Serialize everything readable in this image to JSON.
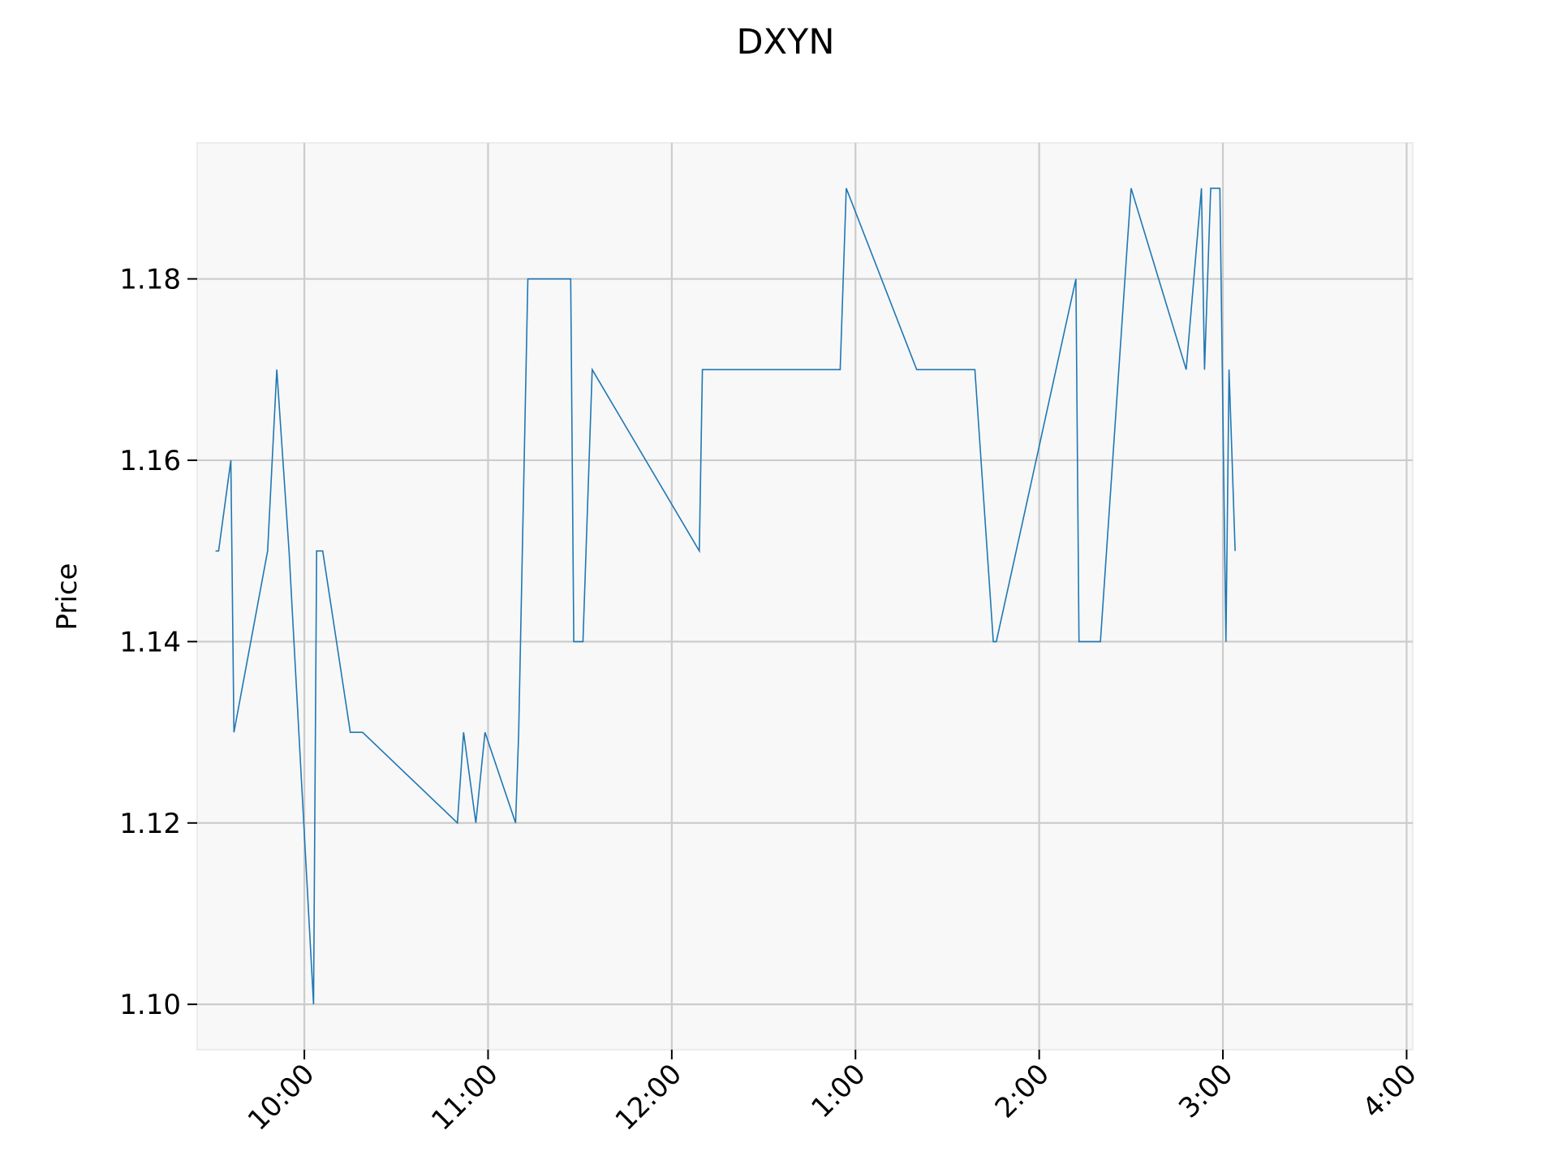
{
  "chart_data": {
    "type": "line",
    "title": "DXYN",
    "xlabel": "",
    "ylabel": "Price",
    "grid": true,
    "ylim": [
      1.095,
      1.195
    ],
    "y_ticks": [
      1.1,
      1.12,
      1.14,
      1.16,
      1.18
    ],
    "y_tick_labels": [
      "1.10",
      "1.12",
      "1.14",
      "1.16",
      "1.18"
    ],
    "xlim": [
      "9:25",
      "4:02"
    ],
    "x_ticks": [
      "10:00",
      "11:00",
      "12:00",
      "1:00",
      "2:00",
      "3:00",
      "4:00"
    ],
    "x_tick_labels": [
      "10:00",
      "11:00",
      "12:00",
      "1:00",
      "2:00",
      "3:00",
      "4:00"
    ],
    "line_color": "#1f77b4",
    "plot_background": "#f8f8f8",
    "grid_color": "#cccccc",
    "series": [
      {
        "x": [
          "9:31",
          "9:32",
          "9:36",
          "9:37",
          "9:48",
          "9:51",
          "9:55",
          "10:03",
          "10:04",
          "10:06",
          "10:15",
          "10:19",
          "10:50",
          "10:52",
          "10:56",
          "10:59",
          "11:09",
          "11:09",
          "11:10",
          "11:13",
          "11:27",
          "11:28",
          "11:31",
          "11:31",
          "11:34",
          "12:09",
          "12:10",
          "12:55",
          "12:57",
          "13:20",
          "13:39",
          "13:45",
          "13:45",
          "13:46",
          "14:12",
          "14:13",
          "14:20",
          "14:30",
          "14:48",
          "14:53",
          "14:54",
          "14:56",
          "14:59",
          "15:01",
          "15:02",
          "15:03",
          "15:04"
        ],
        "y": [
          1.15,
          1.15,
          1.16,
          1.13,
          1.15,
          1.17,
          1.15,
          1.1,
          1.15,
          1.15,
          1.13,
          1.13,
          1.12,
          1.13,
          1.12,
          1.13,
          1.12,
          1.12,
          1.13,
          1.18,
          1.18,
          1.14,
          1.14,
          1.14,
          1.17,
          1.15,
          1.17,
          1.17,
          1.19,
          1.17,
          1.17,
          1.14,
          1.14,
          1.14,
          1.18,
          1.14,
          1.14,
          1.19,
          1.17,
          1.19,
          1.17,
          1.19,
          1.19,
          1.14,
          1.17,
          1.16,
          1.15
        ]
      }
    ]
  }
}
